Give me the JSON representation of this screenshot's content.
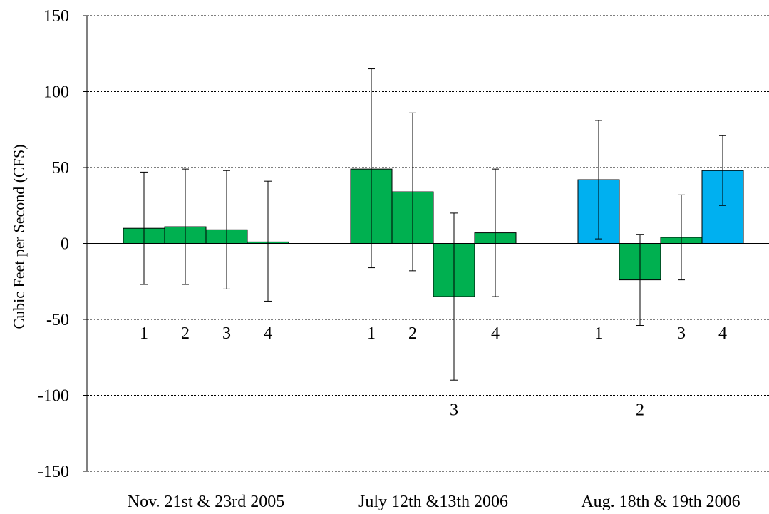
{
  "chart_data": {
    "type": "bar",
    "ylabel": "Cubic Feet per Second (CFS)",
    "xlabel": "",
    "ylim": [
      -150,
      150
    ],
    "yticks": [
      150,
      100,
      50,
      0,
      -50,
      -100,
      -150
    ],
    "ytick_labels": [
      "150",
      "100",
      "50",
      "0",
      "-50",
      "-100",
      "-150"
    ],
    "grid": true,
    "colors": {
      "green": "#00b050",
      "blue": "#00b0f0",
      "stroke": "#000000"
    },
    "groups": [
      {
        "label": "Nov. 21st & 23rd 2005",
        "bars": [
          {
            "label": "1",
            "value": 10,
            "err_low": -27,
            "err_high": 47,
            "color": "green"
          },
          {
            "label": "2",
            "value": 11,
            "err_low": -27,
            "err_high": 49,
            "color": "green"
          },
          {
            "label": "3",
            "value": 9,
            "err_low": -30,
            "err_high": 48,
            "color": "green"
          },
          {
            "label": "4",
            "value": 1,
            "err_low": -38,
            "err_high": 41,
            "color": "green"
          }
        ]
      },
      {
        "label": "July 12th &13th 2006",
        "bars": [
          {
            "label": "1",
            "value": 49,
            "err_low": -16,
            "err_high": 115,
            "color": "green"
          },
          {
            "label": "2",
            "value": 34,
            "err_low": -18,
            "err_high": 86,
            "color": "green"
          },
          {
            "label": "3",
            "value": -35,
            "err_low": -90,
            "err_high": 20,
            "color": "green"
          },
          {
            "label": "4",
            "value": 7,
            "err_low": -35,
            "err_high": 49,
            "color": "green"
          }
        ]
      },
      {
        "label": "Aug. 18th & 19th 2006",
        "bars": [
          {
            "label": "1",
            "value": 42,
            "err_low": 3,
            "err_high": 81,
            "color": "blue"
          },
          {
            "label": "2",
            "value": -24,
            "err_low": -54,
            "err_high": 6,
            "color": "green"
          },
          {
            "label": "3",
            "value": 4,
            "err_low": -24,
            "err_high": 32,
            "color": "green"
          },
          {
            "label": "4",
            "value": 48,
            "err_low": 25,
            "err_high": 71,
            "color": "blue"
          }
        ]
      }
    ]
  }
}
